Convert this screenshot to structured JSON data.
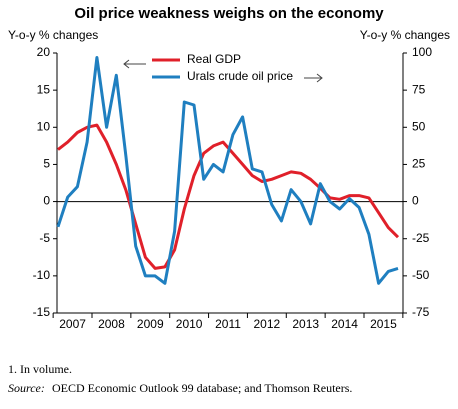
{
  "chart_data": {
    "type": "line",
    "title": "Oil price weakness weighs on the economy",
    "y_label": "Y-o-y % changes",
    "y2_label": "Y-o-y % changes",
    "categories": [
      null,
      "2007",
      null,
      null,
      null,
      "2008",
      null,
      null,
      null,
      "2009",
      null,
      null,
      null,
      "2010",
      null,
      null,
      null,
      "2011",
      null,
      null,
      null,
      "2012",
      null,
      null,
      null,
      "2013",
      null,
      null,
      null,
      "2014",
      null,
      null,
      null,
      "2015",
      null,
      null
    ],
    "series": [
      {
        "name": "Real GDP",
        "color": "#e0202a",
        "values": [
          7,
          8,
          9.3,
          10,
          10.3,
          8,
          5,
          1.5,
          -3,
          -7.5,
          -9,
          -8.8,
          -6.5,
          -1,
          3.5,
          6.5,
          7.5,
          8,
          6.5,
          5,
          3.5,
          2.7,
          3,
          3.5,
          4,
          3.8,
          3,
          1.8,
          0.5,
          0.3,
          0.8,
          0.8,
          0.5,
          -1.5,
          -3.5,
          -4.8
        ]
      },
      {
        "name": "Urals crude oil price",
        "color": "#1f7fc0",
        "axis": "y2",
        "values": [
          -17,
          3,
          10,
          40,
          97,
          50,
          85,
          30,
          -30,
          -50,
          -50,
          -55,
          -20,
          67,
          65,
          15,
          25,
          20,
          45,
          57,
          22,
          20,
          -2,
          -13,
          8,
          0,
          -15,
          12,
          0,
          -5,
          2,
          -4,
          -22,
          -55,
          -47,
          -45
        ]
      }
    ],
    "ylim": [
      -15,
      20
    ],
    "yticks": [
      -15,
      -10,
      -5,
      0,
      5,
      10,
      15,
      20
    ],
    "y2lim": [
      -75,
      100
    ],
    "y2ticks": [
      -75,
      -50,
      -25,
      0,
      25,
      50,
      75,
      100
    ],
    "footnote": "1.  In volume.",
    "source_label": "Source:",
    "source_text": "OECD Economic Outlook 99 database; and Thomson Reuters."
  }
}
